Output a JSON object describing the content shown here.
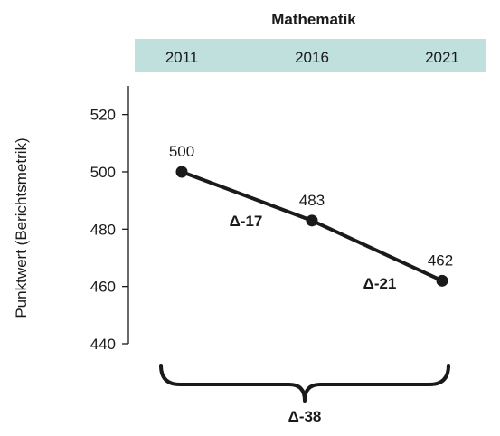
{
  "chart_data": {
    "type": "line",
    "title": "Mathematik",
    "ylabel": "Punktwert (Berichtsmetrik)",
    "xlabel": "",
    "categories": [
      "2011",
      "2016",
      "2021"
    ],
    "series": [
      {
        "values": [
          500,
          483,
          462
        ]
      }
    ],
    "data_labels": [
      "500",
      "483",
      "462"
    ],
    "yticks": [
      440,
      460,
      480,
      500,
      520
    ],
    "ytick_labels": [
      "440",
      "460",
      "480",
      "500",
      "520"
    ],
    "ylim": [
      440,
      530
    ],
    "grid": false,
    "legend": "none",
    "differences": {
      "segment_1": "Δ-17",
      "segment_2": "Δ-21",
      "total": "Δ-38"
    }
  },
  "colors": {
    "year_band": "#bfe0dc",
    "line": "#1a1a1a",
    "marker": "#1a1a1a"
  }
}
